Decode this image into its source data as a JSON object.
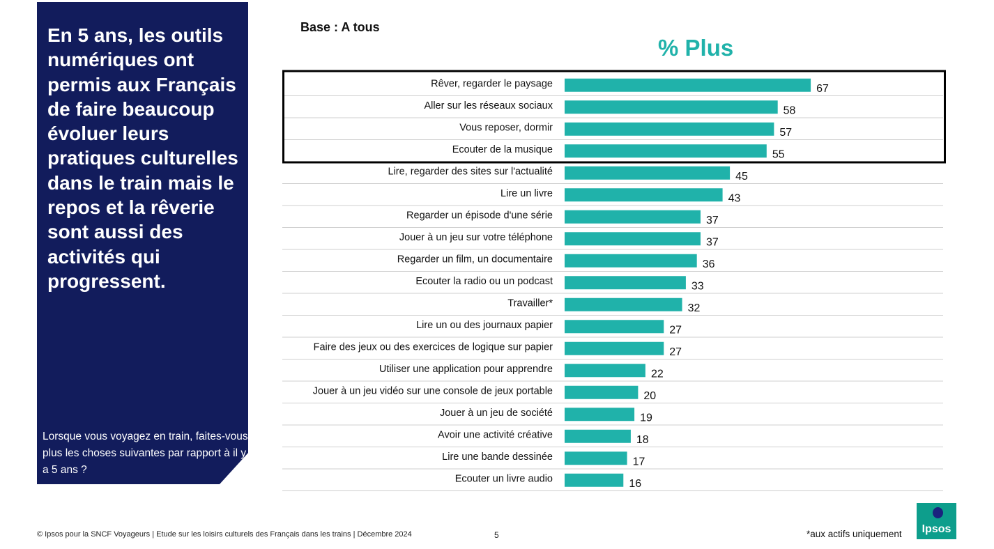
{
  "panel": {
    "headline": "En 5 ans, les outils numériques ont permis aux Français de faire beaucoup évoluer leurs pratiques culturelles dans le train mais le repos et la rêverie sont aussi des activités qui progressent.",
    "question": "Lorsque vous voyagez en train, faites-vous plus les choses suivantes par rapport à il y a 5 ans ?",
    "color": "#121c5c"
  },
  "base_label": "Base : A tous",
  "footer": {
    "source": "© Ipsos pour la SNCF Voyageurs | Etude sur les loisirs culturels des Français  dans les trains | Décembre 2024",
    "page_number": "5",
    "footnote": "*aux actifs uniquement"
  },
  "logo": {
    "text": "Ipsos"
  },
  "chart_data": {
    "type": "bar",
    "orientation": "horizontal",
    "title": "% Plus",
    "bar_color": "#20b2aa",
    "highlighted_count": 4,
    "categories": [
      "Rêver, regarder le paysage",
      "Aller sur les réseaux sociaux",
      "Vous reposer, dormir",
      "Ecouter de la musique",
      "Lire, regarder des sites sur l'actualité",
      "Lire un livre",
      "Regarder un épisode d'une série",
      "Jouer à un jeu sur votre téléphone",
      "Regarder un film, un documentaire",
      "Ecouter la radio ou un podcast",
      "Travailler*",
      "Lire un ou des journaux papier",
      "Faire des jeux ou des exercices de logique sur papier",
      "Utiliser une application pour apprendre",
      "Jouer à un jeu vidéo sur une console de jeux portable",
      "Jouer à un jeu de société",
      "Avoir une activité créative",
      "Lire une bande dessinée",
      "Ecouter un livre audio"
    ],
    "values": [
      67,
      58,
      57,
      55,
      45,
      43,
      37,
      37,
      36,
      33,
      32,
      27,
      27,
      22,
      20,
      19,
      18,
      17,
      16
    ],
    "value_labels": [
      "67",
      "58",
      "57",
      "55",
      "45",
      "43",
      "37",
      "37",
      "36",
      "33",
      "32",
      "27",
      "27",
      "22",
      "20",
      "19",
      "18",
      "17",
      "16"
    ],
    "xlim": [
      0,
      100
    ]
  }
}
